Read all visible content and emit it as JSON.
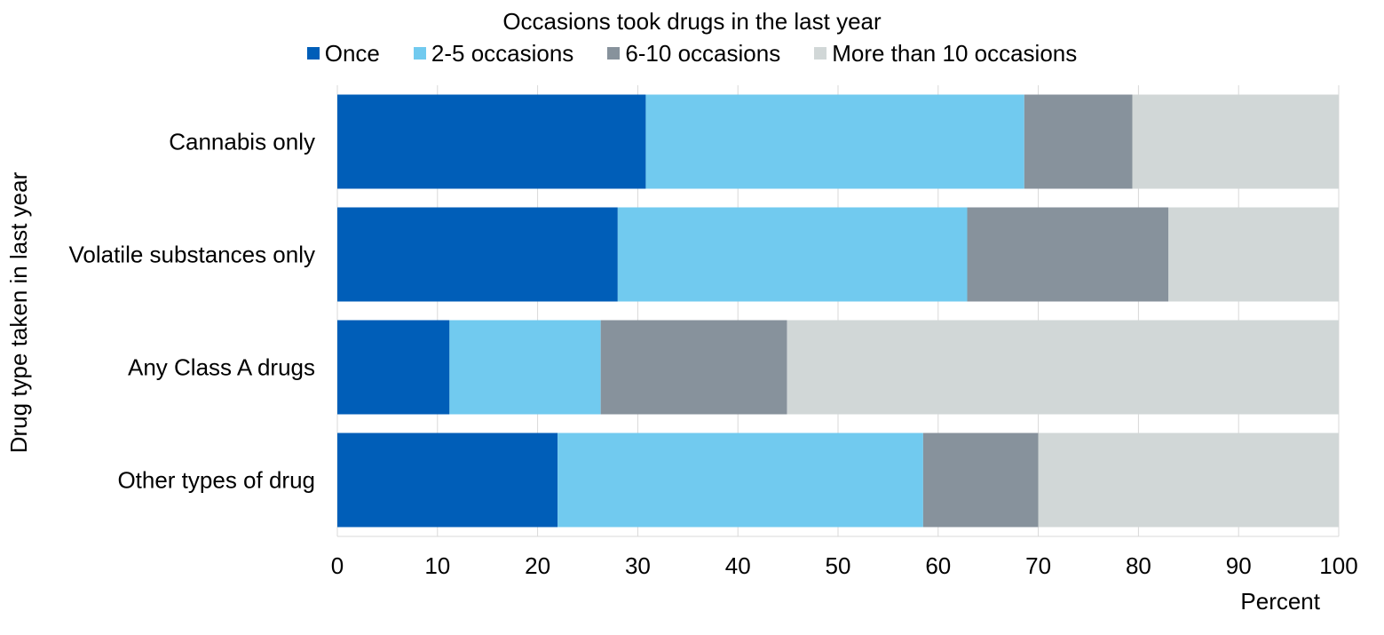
{
  "chart_data": {
    "type": "bar",
    "orientation": "horizontal",
    "stacked": true,
    "legend_title": "Occasions took drugs in the last year",
    "legend_position": "top",
    "categories": [
      "Cannabis only",
      "Volatile substances only",
      "Any Class A drugs",
      "Other types of drug"
    ],
    "series": [
      {
        "name": "Once",
        "color": "#005EB8",
        "values": [
          30.8,
          28.0,
          11.2,
          22.0
        ]
      },
      {
        "name": "2-5 occasions",
        "color": "#71CAEF",
        "values": [
          37.8,
          34.9,
          15.1,
          36.5
        ]
      },
      {
        "name": "6-10 occasions",
        "color": "#87929C",
        "values": [
          10.8,
          20.1,
          18.6,
          11.5
        ]
      },
      {
        "name": "More than 10 occasions",
        "color": "#D1D7D7",
        "values": [
          20.6,
          17.0,
          55.1,
          30.0
        ]
      }
    ],
    "xlabel": "Percent",
    "ylabel": "Drug type taken in last year",
    "xlim": [
      0,
      100
    ],
    "xticks": [
      0,
      10,
      20,
      30,
      40,
      50,
      60,
      70,
      80,
      90,
      100
    ],
    "grid": true,
    "grid_color": "#D9D9D9"
  }
}
